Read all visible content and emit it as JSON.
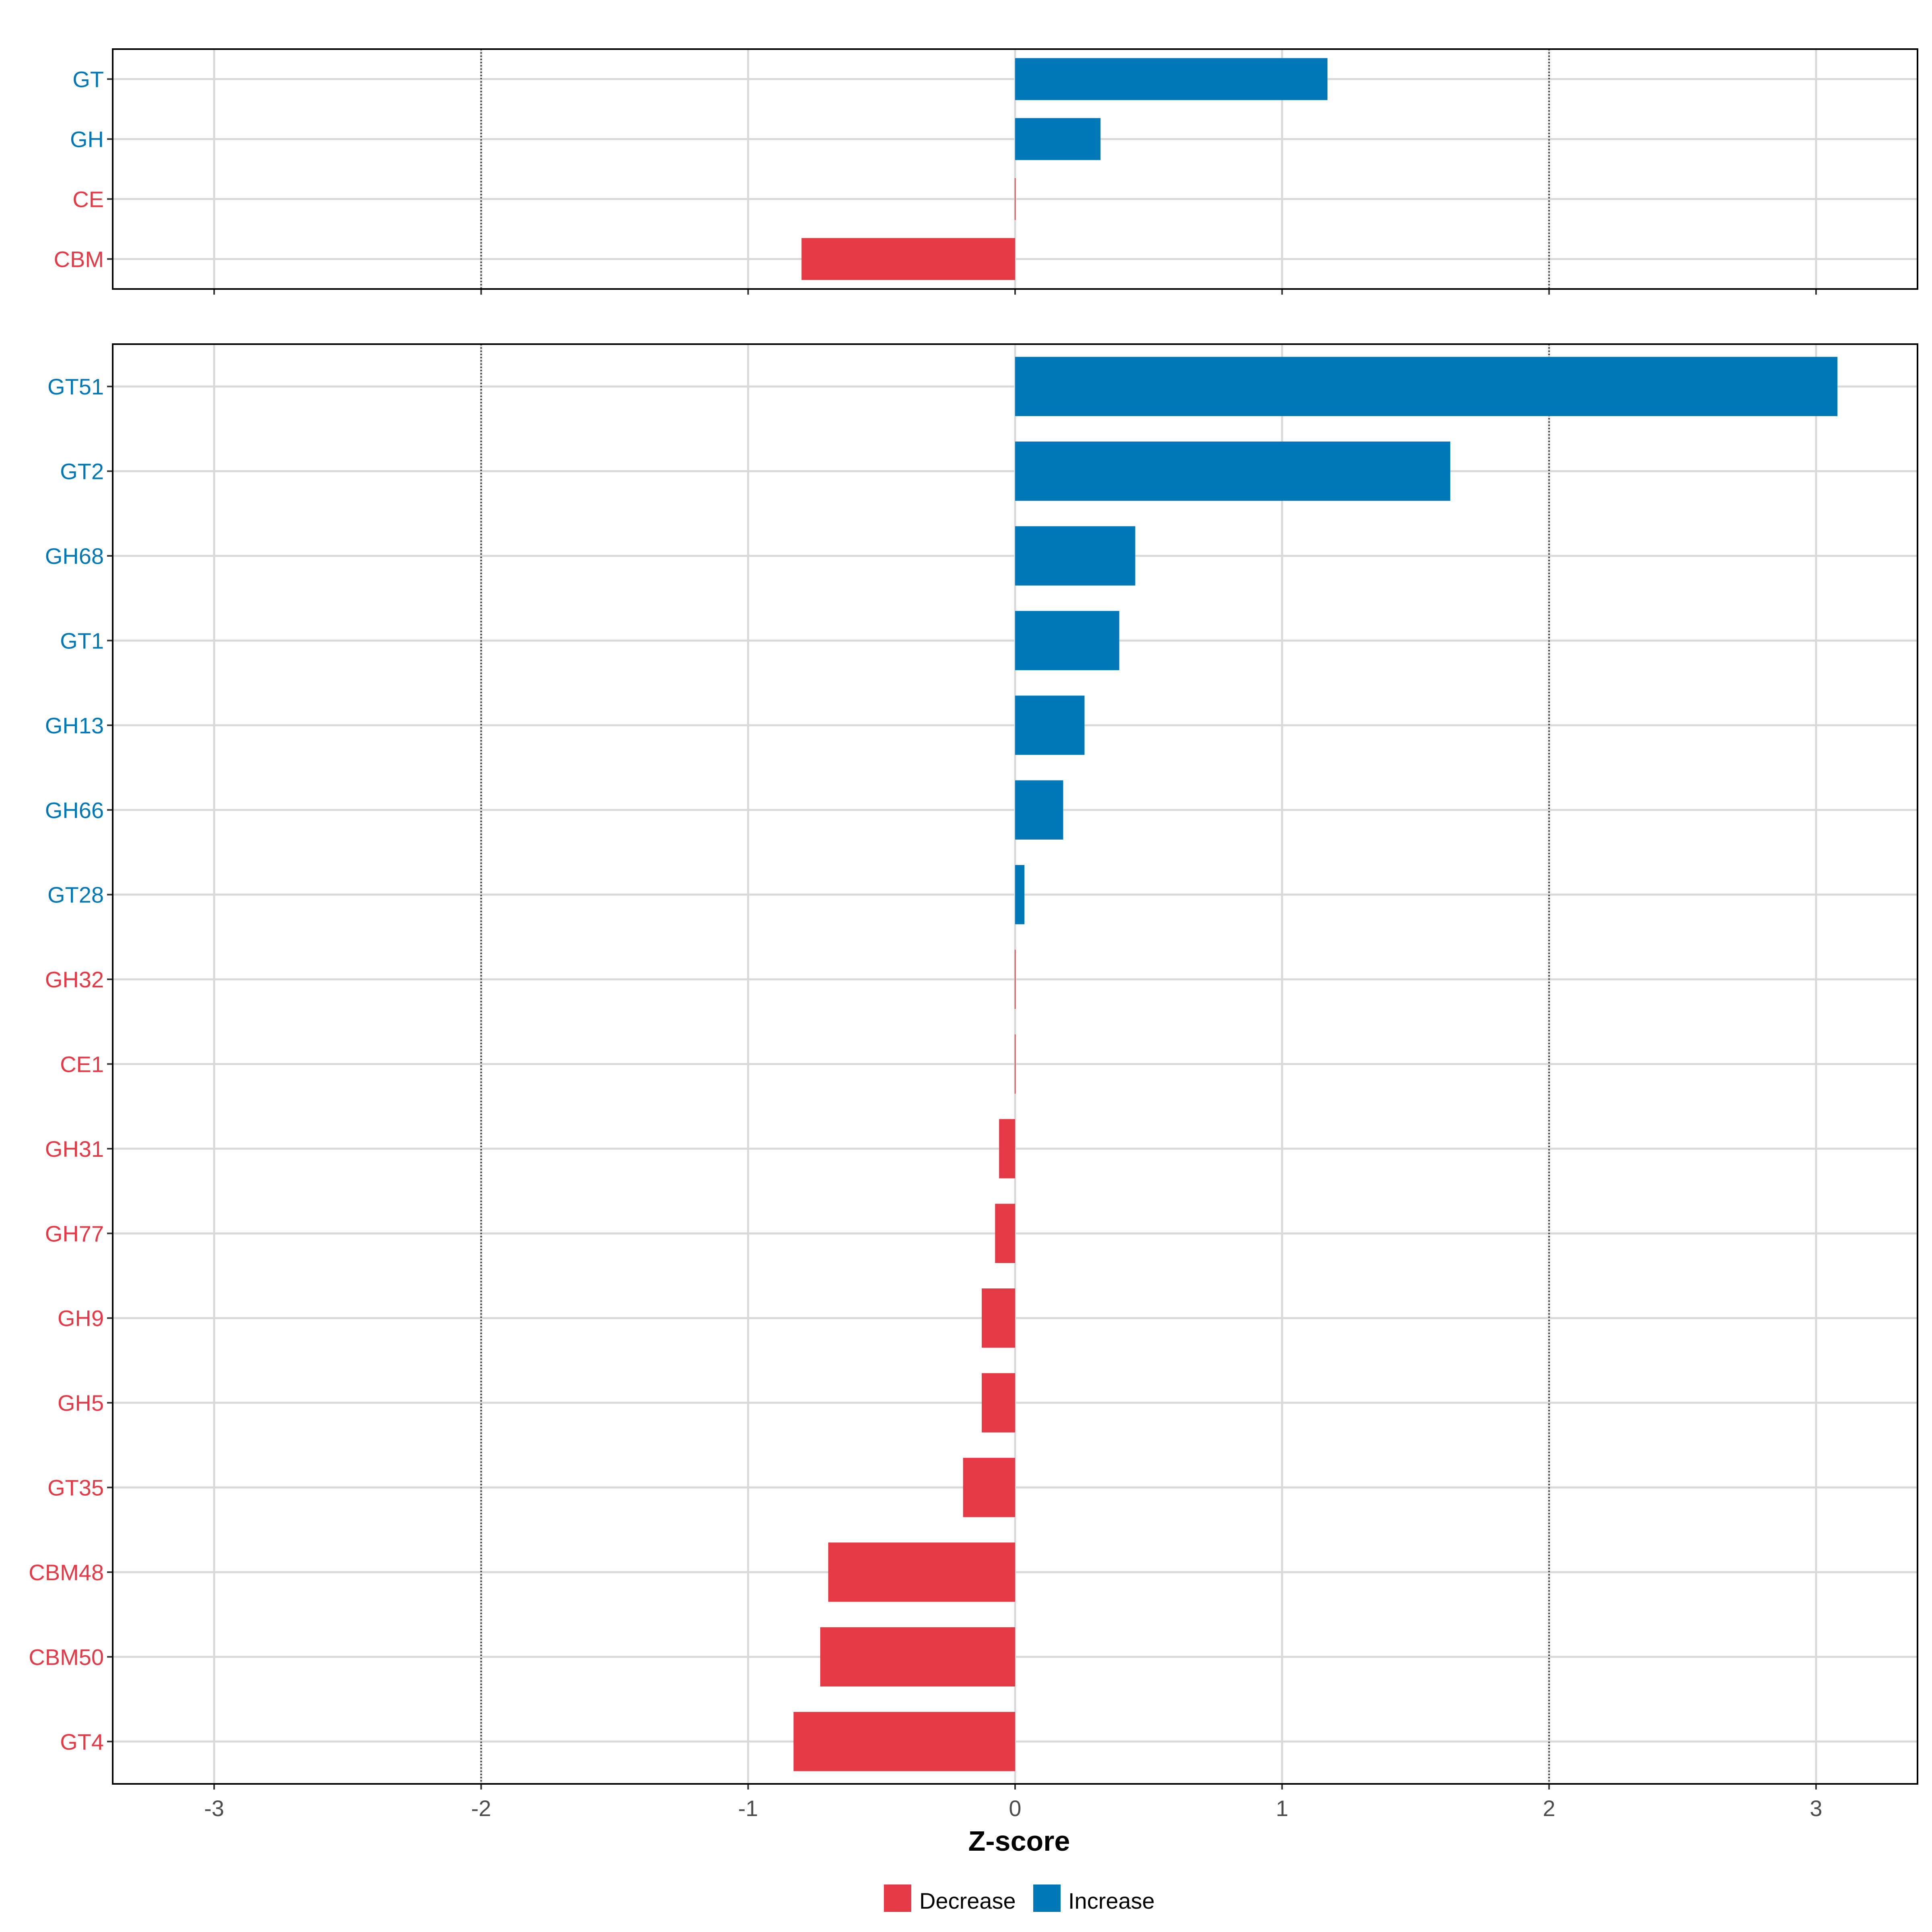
{
  "chart_data": [
    {
      "type": "bar",
      "orientation": "horizontal",
      "panel": "top",
      "categories": [
        "GT",
        "GH",
        "CE",
        "CBM"
      ],
      "values": [
        1.17,
        0.32,
        0.0,
        -0.8
      ],
      "xlim": [
        -3.38,
        3.38
      ],
      "xticks": [
        -3,
        -2,
        -1,
        0,
        1,
        2,
        3
      ],
      "reference_lines": [
        -2,
        2
      ],
      "grid": true
    },
    {
      "type": "bar",
      "orientation": "horizontal",
      "panel": "bottom",
      "categories": [
        "GT51",
        "GT2",
        "GH68",
        "GT1",
        "GH13",
        "GH66",
        "GT28",
        "GH32",
        "CE1",
        "GH31",
        "GH77",
        "GH9",
        "GH5",
        "GT35",
        "CBM48",
        "CBM50",
        "GT4"
      ],
      "values": [
        3.08,
        1.63,
        0.45,
        0.39,
        0.26,
        0.18,
        0.035,
        0.0,
        0.0,
        -0.06,
        -0.075,
        -0.125,
        -0.125,
        -0.195,
        -0.7,
        -0.73,
        -0.83
      ],
      "xlim": [
        -3.38,
        3.38
      ],
      "xticks": [
        -3,
        -2,
        -1,
        0,
        1,
        2,
        3
      ],
      "xtick_labels": [
        "-3",
        "-2",
        "-1",
        "0",
        "1",
        "2",
        "3"
      ],
      "reference_lines": [
        -2,
        2
      ],
      "grid": true
    }
  ],
  "xlabel": "Z-score",
  "legend": {
    "position": "bottom",
    "items": [
      {
        "label": "Decrease",
        "color": "#E63946"
      },
      {
        "label": "Increase",
        "color": "#0077B6"
      }
    ]
  },
  "colors": {
    "decrease": "#E63946",
    "increase": "#0077B6"
  }
}
